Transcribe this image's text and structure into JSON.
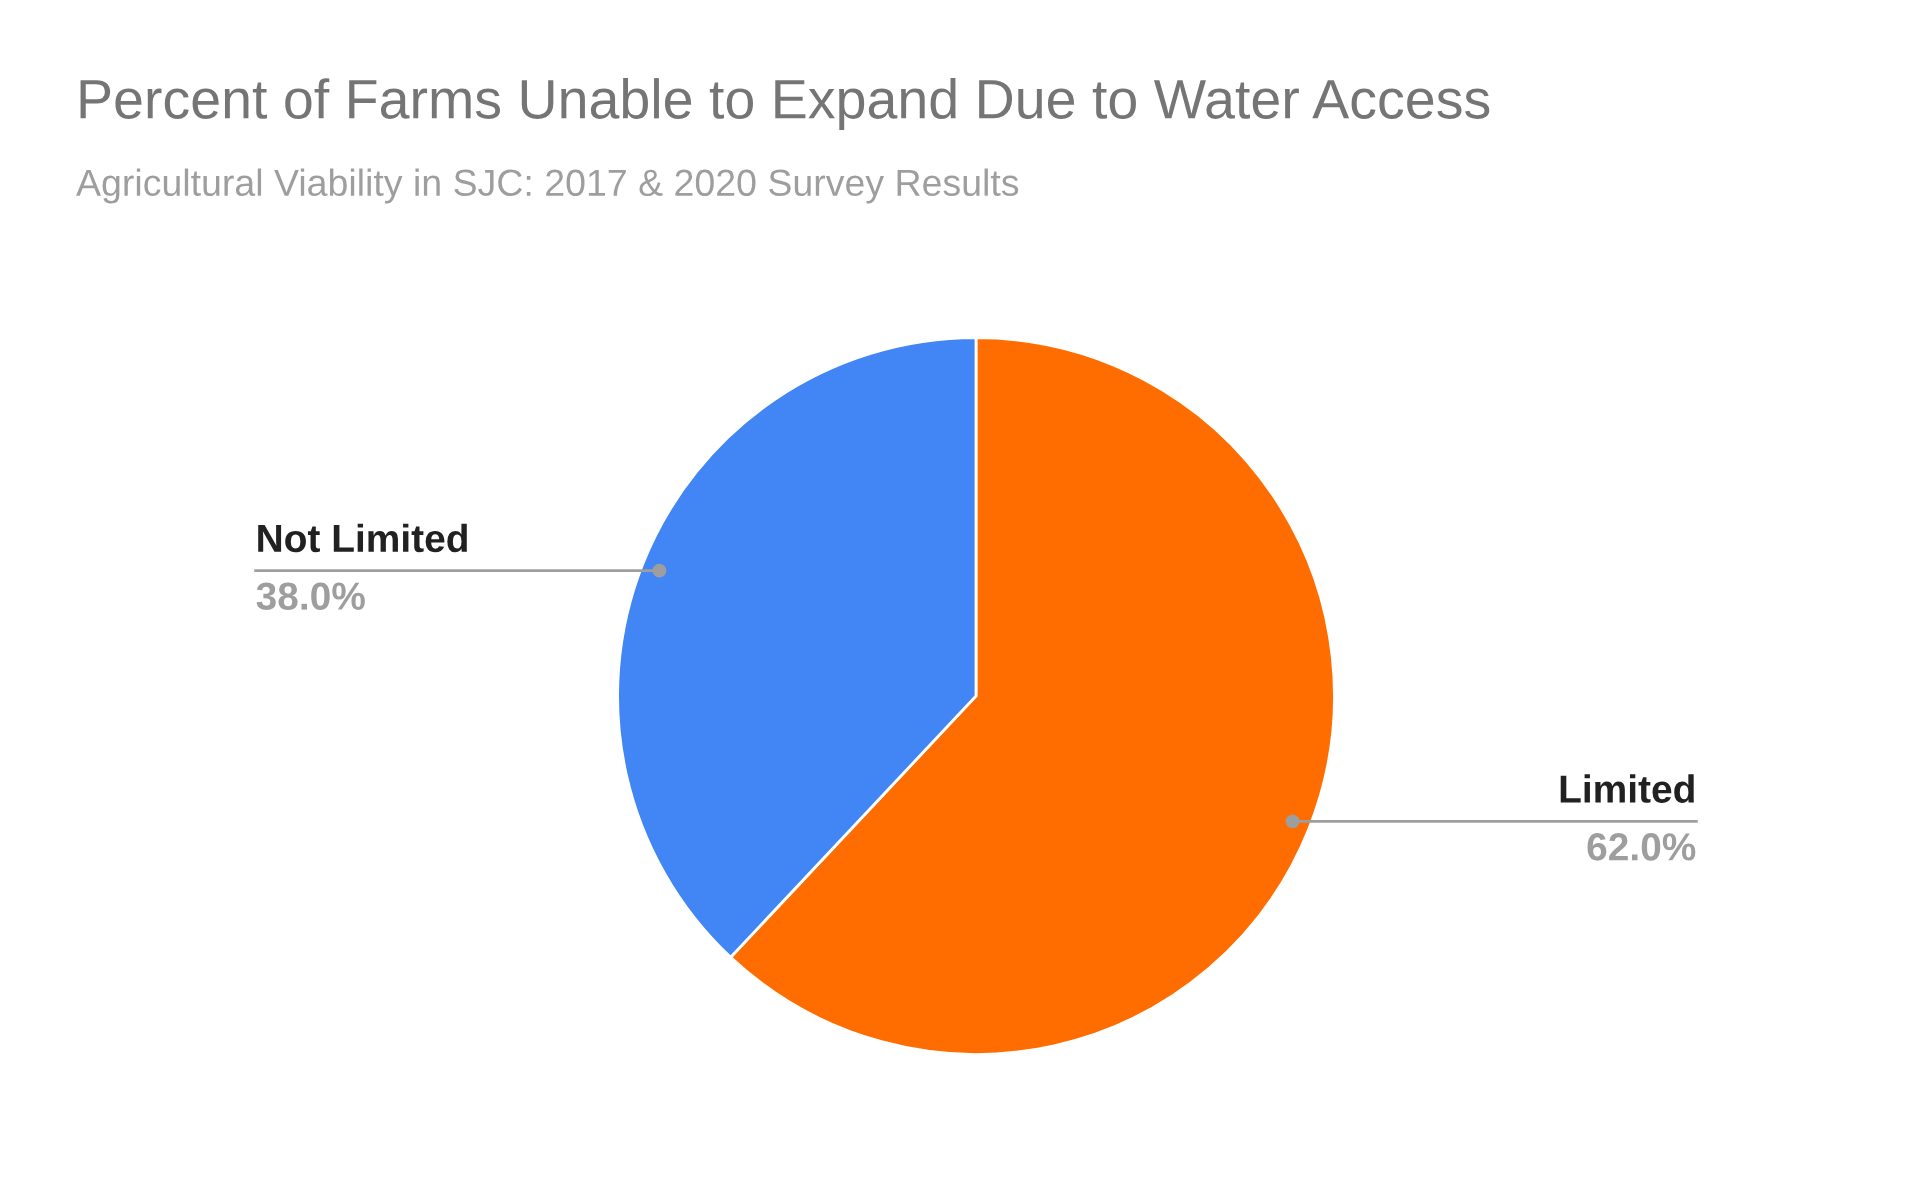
{
  "chart_data": {
    "type": "pie",
    "title": "Percent of Farms Unable to Expand Due to Water Access",
    "subtitle": "Agricultural Viability in SJC: 2017 & 2020 Survey Results",
    "categories": [
      "Limited",
      "Not Limited"
    ],
    "values": [
      62.0,
      38.0
    ],
    "value_labels": [
      "62.0%",
      "38.0%"
    ],
    "colors": [
      "#ff6d01",
      "#4285f4"
    ],
    "legend": false
  }
}
